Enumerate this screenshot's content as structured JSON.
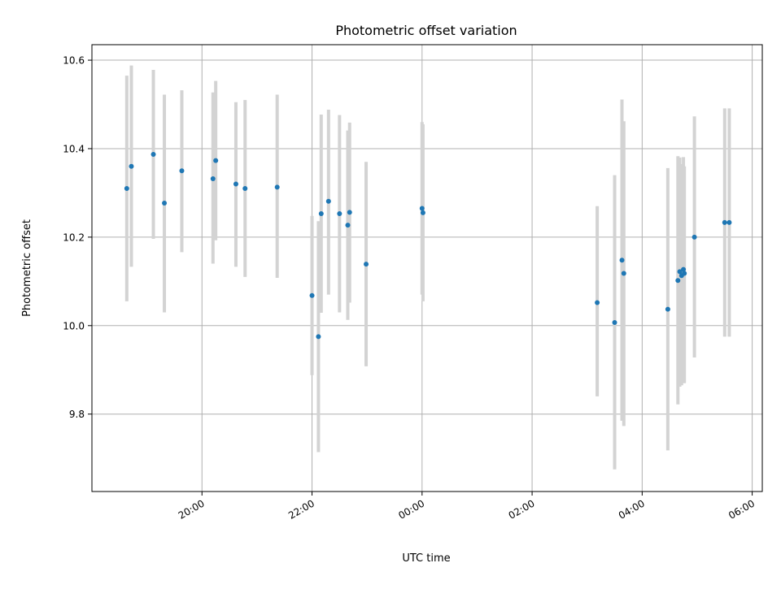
{
  "chart_data": {
    "type": "scatter",
    "title": "Photometric offset variation",
    "xlabel": "UTC time",
    "ylabel": "Photometric offset",
    "x_axis": {
      "kind": "time",
      "start": "2000-01-01T18:00",
      "range": [
        "2000-01-01T18:00",
        "2000-01-02T06:11"
      ],
      "ticks": [
        {
          "time": "2000-01-01T20:00",
          "label": "20:00"
        },
        {
          "time": "2000-01-01T22:00",
          "label": "22:00"
        },
        {
          "time": "2000-01-02T00:00",
          "label": "00:00"
        },
        {
          "time": "2000-01-02T02:00",
          "label": "02:00"
        },
        {
          "time": "2000-01-02T04:00",
          "label": "04:00"
        },
        {
          "time": "2000-01-02T06:00",
          "label": "06:00"
        }
      ]
    },
    "y_axis": {
      "range": [
        9.625,
        10.635
      ],
      "ticks": [
        {
          "value": 9.8,
          "label": "9.8"
        },
        {
          "value": 10.0,
          "label": "10.0"
        },
        {
          "value": 10.2,
          "label": "10.2"
        },
        {
          "value": 10.4,
          "label": "10.4"
        },
        {
          "value": 10.6,
          "label": "10.6"
        }
      ]
    },
    "grid": true,
    "colors": {
      "points": "#1f77b4",
      "errorbars": "#d3d3d3",
      "grid": "#b0b0b0",
      "axes": "#000000"
    },
    "points": [
      {
        "time": "2000-01-01T18:38",
        "y": 10.31,
        "lo": 10.055,
        "hi": 10.565
      },
      {
        "time": "2000-01-01T18:43",
        "y": 10.36,
        "lo": 10.133,
        "hi": 10.588
      },
      {
        "time": "2000-01-01T19:07",
        "y": 10.387,
        "lo": 10.196,
        "hi": 10.578
      },
      {
        "time": "2000-01-01T19:19",
        "y": 10.277,
        "lo": 10.03,
        "hi": 10.522
      },
      {
        "time": "2000-01-01T19:38",
        "y": 10.35,
        "lo": 10.166,
        "hi": 10.532
      },
      {
        "time": "2000-01-01T20:12",
        "y": 10.332,
        "lo": 10.14,
        "hi": 10.527
      },
      {
        "time": "2000-01-01T20:15",
        "y": 10.373,
        "lo": 10.193,
        "hi": 10.553
      },
      {
        "time": "2000-01-01T20:37",
        "y": 10.32,
        "lo": 10.133,
        "hi": 10.505
      },
      {
        "time": "2000-01-01T20:47",
        "y": 10.31,
        "lo": 10.11,
        "hi": 10.51
      },
      {
        "time": "2000-01-01T21:22",
        "y": 10.313,
        "lo": 10.108,
        "hi": 10.522
      },
      {
        "time": "2000-01-01T22:00",
        "y": 10.068,
        "lo": 9.888,
        "hi": 10.248
      },
      {
        "time": "2000-01-01T22:07",
        "y": 9.975,
        "lo": 9.714,
        "hi": 10.236
      },
      {
        "time": "2000-01-01T22:10",
        "y": 10.253,
        "lo": 10.029,
        "hi": 10.477
      },
      {
        "time": "2000-01-01T22:18",
        "y": 10.281,
        "lo": 10.07,
        "hi": 10.488
      },
      {
        "time": "2000-01-01T22:30",
        "y": 10.253,
        "lo": 10.03,
        "hi": 10.476
      },
      {
        "time": "2000-01-01T22:39",
        "y": 10.227,
        "lo": 10.013,
        "hi": 10.441
      },
      {
        "time": "2000-01-01T22:41",
        "y": 10.256,
        "lo": 10.052,
        "hi": 10.459
      },
      {
        "time": "2000-01-01T22:59",
        "y": 10.139,
        "lo": 9.908,
        "hi": 10.37
      },
      {
        "time": "2000-01-02T00:00",
        "y": 10.265,
        "lo": 10.07,
        "hi": 10.46
      },
      {
        "time": "2000-01-02T00:01",
        "y": 10.255,
        "lo": 10.055,
        "hi": 10.455
      },
      {
        "time": "2000-01-02T03:11",
        "y": 10.052,
        "lo": 9.84,
        "hi": 10.27
      },
      {
        "time": "2000-01-02T03:30",
        "y": 10.007,
        "lo": 9.675,
        "hi": 10.34
      },
      {
        "time": "2000-01-02T03:38",
        "y": 10.148,
        "lo": 9.785,
        "hi": 10.511
      },
      {
        "time": "2000-01-02T03:40",
        "y": 10.118,
        "lo": 9.773,
        "hi": 10.462
      },
      {
        "time": "2000-01-02T04:28",
        "y": 10.037,
        "lo": 9.718,
        "hi": 10.356
      },
      {
        "time": "2000-01-02T04:39",
        "y": 10.102,
        "lo": 9.822,
        "hi": 10.383
      },
      {
        "time": "2000-01-02T04:41",
        "y": 10.122,
        "lo": 9.862,
        "hi": 10.38
      },
      {
        "time": "2000-01-02T04:43",
        "y": 10.113,
        "lo": 9.865,
        "hi": 10.365
      },
      {
        "time": "2000-01-02T04:45",
        "y": 10.127,
        "lo": 9.87,
        "hi": 10.381
      },
      {
        "time": "2000-01-02T04:46",
        "y": 10.118,
        "lo": 9.87,
        "hi": 10.36
      },
      {
        "time": "2000-01-02T04:57",
        "y": 10.2,
        "lo": 9.928,
        "hi": 10.473
      },
      {
        "time": "2000-01-02T05:30",
        "y": 10.233,
        "lo": 9.975,
        "hi": 10.491
      },
      {
        "time": "2000-01-02T05:35",
        "y": 10.233,
        "lo": 9.975,
        "hi": 10.491
      }
    ]
  }
}
